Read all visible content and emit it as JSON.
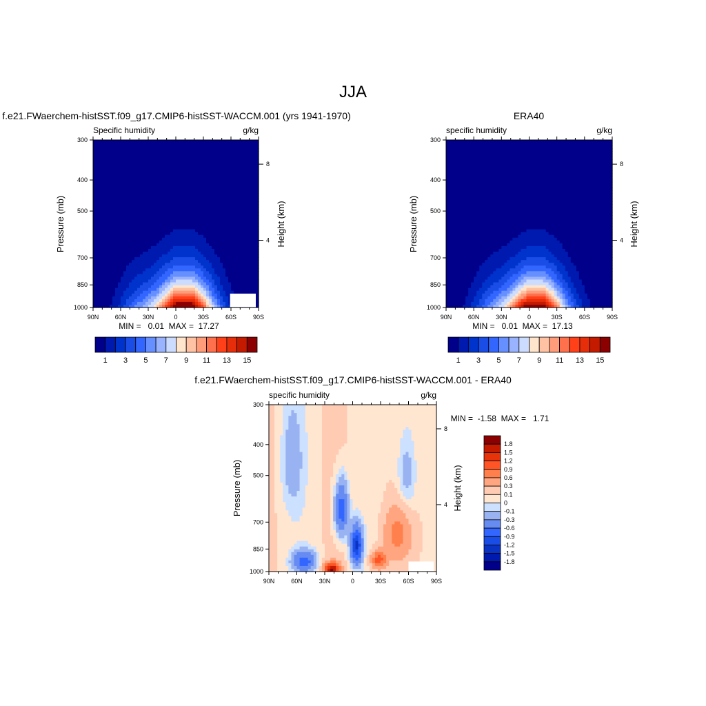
{
  "figure_title": "JJA",
  "chart_data": [
    {
      "type": "heatmap",
      "id": "model",
      "title": "f.e21.FWaerchem-histSST.f09_g17.CMIP6-histSST-WACCM.001 (yrs 1941-1970)",
      "left_label": "Specific humidity",
      "right_label": "g/kg",
      "ylabel": "Pressure (mb)",
      "ylabel_right": "Height (km)",
      "x_ticks": [
        "90N",
        "60N",
        "30N",
        "0",
        "30S",
        "60S",
        "90S"
      ],
      "y_ticks": [
        "300",
        "400",
        "500",
        "700",
        "850",
        "1000"
      ],
      "height_ticks": [
        "8",
        "4"
      ],
      "stats": "MIN =   0.01  MAX =  17.27",
      "min": 0.01,
      "max": 17.27,
      "peak_lat": -8,
      "peak_value": 17.2,
      "levels": [
        1,
        2,
        3,
        4,
        5,
        6,
        7,
        8,
        9,
        10,
        11,
        12,
        13,
        14,
        15
      ],
      "colorbar_labels": [
        "1",
        "3",
        "5",
        "7",
        "9",
        "11",
        "13",
        "15"
      ]
    },
    {
      "type": "heatmap",
      "id": "obs",
      "title": "ERA40",
      "left_label": "specific humidity",
      "right_label": "g/kg",
      "ylabel": "Pressure (mb)",
      "ylabel_right": "Height (km)",
      "x_ticks": [
        "90N",
        "60N",
        "30N",
        "0",
        "30S",
        "60S",
        "90S"
      ],
      "y_ticks": [
        "300",
        "400",
        "500",
        "700",
        "850",
        "1000"
      ],
      "height_ticks": [
        "8",
        "4"
      ],
      "stats": "MIN =   0.01  MAX =  17.13",
      "min": 0.01,
      "max": 17.13,
      "peak_lat": -6,
      "peak_value": 17.0,
      "levels": [
        1,
        2,
        3,
        4,
        5,
        6,
        7,
        8,
        9,
        10,
        11,
        12,
        13,
        14,
        15
      ],
      "colorbar_labels": [
        "1",
        "3",
        "5",
        "7",
        "9",
        "11",
        "13",
        "15"
      ]
    },
    {
      "type": "heatmap",
      "id": "diff",
      "title": "f.e21.FWaerchem-histSST.f09_g17.CMIP6-histSST-WACCM.001 - ERA40",
      "left_label": "specific humidity",
      "right_label": "g/kg",
      "ylabel": "Pressure (mb)",
      "ylabel_right": "Height (km)",
      "x_ticks": [
        "90N",
        "60N",
        "30N",
        "0",
        "30S",
        "60S",
        "90S"
      ],
      "y_ticks": [
        "300",
        "400",
        "500",
        "700",
        "850",
        "1000"
      ],
      "height_ticks": [
        "8",
        "4"
      ],
      "stats": "MIN =  -1.58  MAX =   1.71",
      "min": -1.58,
      "max": 1.71,
      "levels": [
        -1.8,
        -1.5,
        -1.2,
        -0.9,
        -0.6,
        -0.3,
        -0.1,
        0,
        0.1,
        0.3,
        0.6,
        0.9,
        1.2,
        1.5,
        1.8
      ],
      "colorbar_labels": [
        "1.8",
        "1.5",
        "1.2",
        "0.9",
        "0.6",
        "0.3",
        "0.1",
        "0",
        "-0.1",
        "-0.3",
        "-0.6",
        "-0.9",
        "-1.2",
        "-1.5",
        "-1.8"
      ]
    }
  ],
  "colors": {
    "sequential": [
      "#00008b",
      "#001ab0",
      "#0033cc",
      "#1a4ce6",
      "#3366ff",
      "#6690ff",
      "#99b3ff",
      "#ccdcff",
      "#ffe5cc",
      "#ffc2a3",
      "#ff9c7a",
      "#ff704d",
      "#ff4019",
      "#e62e0a",
      "#c41b00",
      "#8b0000"
    ],
    "diverging": [
      "#00008b",
      "#001ab0",
      "#0a33c4",
      "#1a4ce6",
      "#3366ff",
      "#668cf2",
      "#99b3f2",
      "#cce0ff",
      "#ffe6d1",
      "#ffccb3",
      "#ffa680",
      "#ff804d",
      "#ff5526",
      "#e6330a",
      "#c41b00",
      "#8b0000"
    ]
  }
}
